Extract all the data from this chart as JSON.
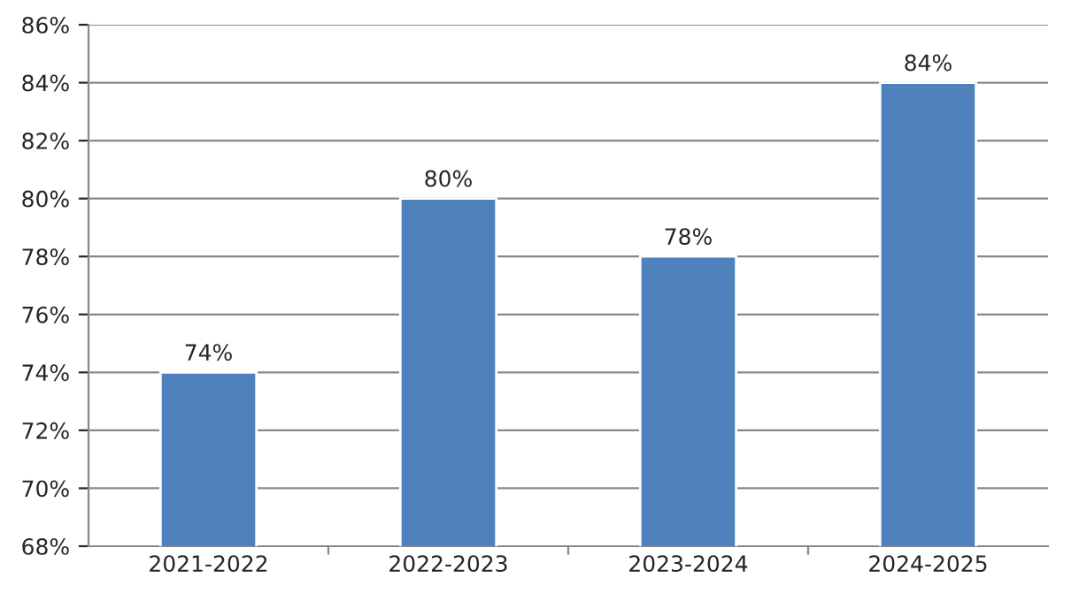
{
  "chart_data": {
    "type": "bar",
    "categories": [
      "2021-2022",
      "2022-2023",
      "2023-2024",
      "2024-2025"
    ],
    "values": [
      74,
      80,
      78,
      84
    ],
    "value_labels": [
      "74%",
      "80%",
      "78%",
      "84%"
    ],
    "color": "#4f81bd",
    "ylim": [
      68,
      86
    ],
    "yticks": [
      {
        "value": 68,
        "label": "68%"
      },
      {
        "value": 70,
        "label": "70%"
      },
      {
        "value": 72,
        "label": "72%"
      },
      {
        "value": 74,
        "label": "74%"
      },
      {
        "value": 76,
        "label": "76%"
      },
      {
        "value": 78,
        "label": "78%"
      },
      {
        "value": 80,
        "label": "80%"
      },
      {
        "value": 82,
        "label": "82%"
      },
      {
        "value": 84,
        "label": "84%"
      },
      {
        "value": 86,
        "label": "86%"
      }
    ],
    "grid": "y",
    "legend": false
  }
}
